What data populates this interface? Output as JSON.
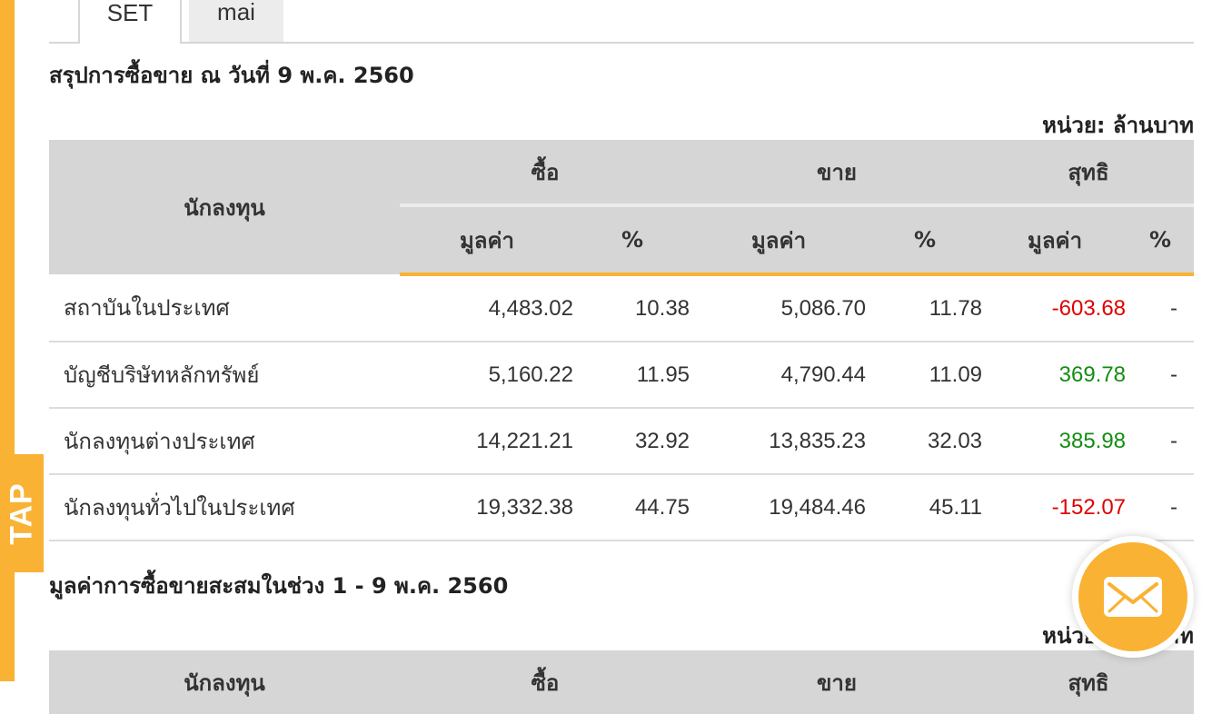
{
  "tap_label": "TAP",
  "tabs": [
    {
      "label": "SET"
    },
    {
      "label": "mai"
    }
  ],
  "summary": {
    "title": "สรุปการซื้อขาย ณ วันที่ 9 พ.ค. 2560",
    "unit": "หน่วย: ล้านบาท",
    "headers": {
      "investor": "นักลงทุน",
      "buy": "ซื้อ",
      "sell": "ขาย",
      "net": "สุทธิ",
      "value": "มูลค่า",
      "percent": "%"
    },
    "rows": [
      {
        "name": "สถาบันในประเทศ",
        "buy_value": "4,483.02",
        "buy_pct": "10.38",
        "sell_value": "5,086.70",
        "sell_pct": "11.78",
        "net_value": "-603.68",
        "net_pct": "-"
      },
      {
        "name": "บัญชีบริษัทหลักทรัพย์",
        "buy_value": "5,160.22",
        "buy_pct": "11.95",
        "sell_value": "4,790.44",
        "sell_pct": "11.09",
        "net_value": "369.78",
        "net_pct": "-"
      },
      {
        "name": "นักลงทุนต่างประเทศ",
        "buy_value": "14,221.21",
        "buy_pct": "32.92",
        "sell_value": "13,835.23",
        "sell_pct": "32.03",
        "net_value": "385.98",
        "net_pct": "-"
      },
      {
        "name": "นักลงทุนทั่วไปในประเทศ",
        "buy_value": "19,332.38",
        "buy_pct": "44.75",
        "sell_value": "19,484.46",
        "sell_pct": "45.11",
        "net_value": "-152.07",
        "net_pct": "-"
      }
    ]
  },
  "cumulative": {
    "title": "มูลค่าการซื้อขายสะสมในช่วง 1 - 9 พ.ค. 2560",
    "unit": "หน่วย: ล้านบาท",
    "headers": {
      "investor": "นักลงทุน",
      "buy": "ซื้อ",
      "sell": "ขาย",
      "net": "สุทธิ"
    }
  },
  "colors": {
    "accent": "#f9b233",
    "negative": "#e00000",
    "positive": "#138d13",
    "header_bg": "#d6d6d6"
  },
  "icons": {
    "mail": "mail-icon"
  }
}
